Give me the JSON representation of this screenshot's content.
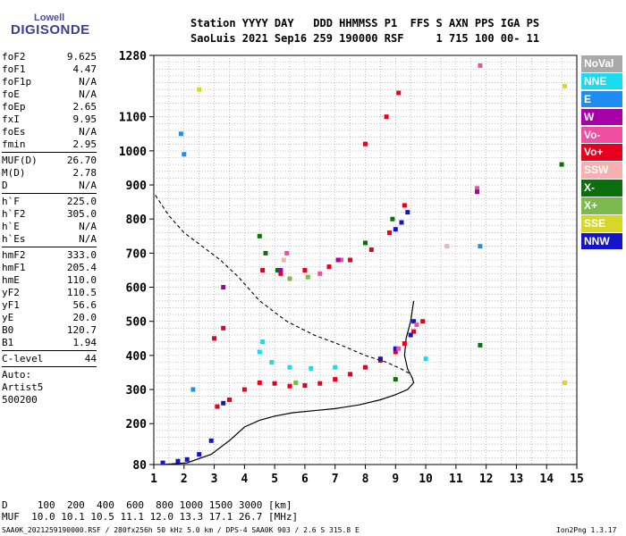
{
  "logo": {
    "top": "Lowell",
    "main": "DIGISONDE"
  },
  "header": {
    "line1": "Station YYYY DAY   DDD HHMMSS P1  FFS S AXN PPS IGA PS",
    "line2": "SaoLuis 2021 Sep16 259 190000 RSF     1 715 100 00- 11"
  },
  "params": {
    "group1": [
      {
        "name": "foF2",
        "value": "9.625"
      },
      {
        "name": "foF1",
        "value": "4.47"
      },
      {
        "name": "foF1p",
        "value": "N/A"
      },
      {
        "name": "foE",
        "value": "N/A"
      },
      {
        "name": "foEp",
        "value": "2.65"
      },
      {
        "name": "fxI",
        "value": "9.95"
      },
      {
        "name": "foEs",
        "value": "N/A"
      },
      {
        "name": "fmin",
        "value": "2.95"
      }
    ],
    "group2": [
      {
        "name": "MUF(D)",
        "value": "26.70"
      },
      {
        "name": "M(D)",
        "value": "2.78"
      },
      {
        "name": "D",
        "value": "N/A"
      }
    ],
    "group3": [
      {
        "name": "h`F",
        "value": "225.0"
      },
      {
        "name": "h`F2",
        "value": "305.0"
      },
      {
        "name": "h`E",
        "value": "N/A"
      },
      {
        "name": "h`Es",
        "value": "N/A"
      }
    ],
    "group4": [
      {
        "name": "hmF2",
        "value": "333.0"
      },
      {
        "name": "hmF1",
        "value": "205.4"
      },
      {
        "name": "hmE",
        "value": "110.0"
      },
      {
        "name": "yF2",
        "value": "110.5"
      },
      {
        "name": "yF1",
        "value": "56.6"
      },
      {
        "name": "yE",
        "value": "20.0"
      },
      {
        "name": "B0",
        "value": "120.7"
      },
      {
        "name": "B1",
        "value": "1.94"
      }
    ],
    "group5": [
      {
        "name": "C-level",
        "value": "44"
      }
    ]
  },
  "auto": {
    "line1": "Auto:",
    "line2": "Artist5",
    "line3": "500200"
  },
  "footer": {
    "distance_row": "D     100  200  400  600  800 1000 1500 3000 [km]",
    "muf_row": "MUF  10.0 10.1 10.5 11.1 12.0 13.3 17.1 26.7 [MHz]",
    "file_info": "SAA0K_2021259190000.RSF / 280fx256h 50 kHz 5.0 km / DPS-4 SAA0K 903 / 2.6 S 315.8 E",
    "version": "Ion2Png 1.3.17"
  },
  "legend": [
    {
      "label": "NoVal",
      "color": "#a9a9a9"
    },
    {
      "label": "NNE",
      "color": "#19dcf0"
    },
    {
      "label": "E",
      "color": "#1e8cf0"
    },
    {
      "label": "W",
      "color": "#a800a8"
    },
    {
      "label": "Vo-",
      "color": "#f04ea0"
    },
    {
      "label": "Vo+",
      "color": "#e6001e"
    },
    {
      "label": "SSW",
      "color": "#f7b0b0"
    },
    {
      "label": "X-",
      "color": "#0c6e0c"
    },
    {
      "label": "X+",
      "color": "#7cba50"
    },
    {
      "label": "SSE",
      "color": "#d7d728"
    },
    {
      "label": "NNW",
      "color": "#1414c8"
    }
  ],
  "chart_data": {
    "type": "scatter",
    "title": "",
    "xlabel": "",
    "ylabel": "",
    "xlim": [
      1,
      15
    ],
    "ylim": [
      80,
      1280
    ],
    "xticks": [
      1,
      2,
      3,
      4,
      5,
      6,
      7,
      8,
      9,
      10,
      11,
      12,
      13,
      14,
      15
    ],
    "yticks": [
      80,
      200,
      300,
      400,
      500,
      600,
      700,
      800,
      900,
      1000,
      1100,
      1280
    ],
    "grid": true,
    "series": [
      {
        "name": "Vo+",
        "color": "#e6001e",
        "points": [
          [
            3.1,
            250
          ],
          [
            3.5,
            270
          ],
          [
            4.0,
            300
          ],
          [
            4.5,
            320
          ],
          [
            5.0,
            318
          ],
          [
            5.5,
            310
          ],
          [
            6.0,
            312
          ],
          [
            6.5,
            318
          ],
          [
            7.0,
            330
          ],
          [
            7.5,
            345
          ],
          [
            8.0,
            365
          ],
          [
            8.5,
            385
          ],
          [
            9.0,
            410
          ],
          [
            9.3,
            435
          ],
          [
            9.6,
            470
          ],
          [
            9.9,
            500
          ],
          [
            4.6,
            650
          ],
          [
            5.2,
            640
          ],
          [
            6.0,
            650
          ],
          [
            6.8,
            660
          ],
          [
            7.5,
            680
          ],
          [
            8.2,
            710
          ],
          [
            8.8,
            760
          ],
          [
            9.3,
            840
          ],
          [
            8.0,
            1020
          ],
          [
            8.7,
            1100
          ],
          [
            9.1,
            1170
          ],
          [
            3.0,
            450
          ],
          [
            3.3,
            480
          ]
        ]
      },
      {
        "name": "NNE",
        "color": "#19dcf0",
        "points": [
          [
            4.5,
            410
          ],
          [
            4.9,
            380
          ],
          [
            5.5,
            365
          ],
          [
            6.2,
            362
          ],
          [
            7.0,
            365
          ],
          [
            4.6,
            440
          ],
          [
            10.0,
            390
          ]
        ]
      },
      {
        "name": "NNW",
        "color": "#1414c8",
        "points": [
          [
            1.3,
            85
          ],
          [
            1.8,
            90
          ],
          [
            2.1,
            95
          ],
          [
            2.5,
            110
          ],
          [
            2.9,
            150
          ],
          [
            3.3,
            260
          ],
          [
            8.5,
            390
          ],
          [
            9.0,
            420
          ],
          [
            9.5,
            460
          ],
          [
            9.6,
            500
          ],
          [
            9.4,
            820
          ],
          [
            9.2,
            790
          ],
          [
            9.0,
            770
          ]
        ]
      },
      {
        "name": "X-",
        "color": "#0c6e0c",
        "points": [
          [
            4.5,
            750
          ],
          [
            4.7,
            700
          ],
          [
            5.1,
            650
          ],
          [
            8.0,
            730
          ],
          [
            8.9,
            800
          ],
          [
            11.8,
            430
          ],
          [
            14.5,
            960
          ],
          [
            9.0,
            330
          ]
        ]
      },
      {
        "name": "X+",
        "color": "#7cba50",
        "points": [
          [
            5.5,
            625
          ],
          [
            6.1,
            630
          ],
          [
            5.7,
            320
          ]
        ]
      },
      {
        "name": "Vo-",
        "color": "#f04ea0",
        "points": [
          [
            5.4,
            700
          ],
          [
            6.5,
            640
          ],
          [
            7.2,
            680
          ],
          [
            9.1,
            420
          ],
          [
            9.7,
            490
          ],
          [
            11.8,
            1250
          ],
          [
            11.7,
            890
          ]
        ]
      },
      {
        "name": "SSW",
        "color": "#f7b0b0",
        "points": [
          [
            10.7,
            720
          ],
          [
            5.3,
            680
          ]
        ]
      },
      {
        "name": "SSE",
        "color": "#d7d728",
        "points": [
          [
            2.5,
            1180
          ],
          [
            14.6,
            1190
          ],
          [
            14.6,
            320
          ]
        ]
      },
      {
        "name": "E",
        "color": "#1e8cf0",
        "points": [
          [
            1.9,
            1050
          ],
          [
            2.0,
            990
          ],
          [
            2.3,
            300
          ],
          [
            11.8,
            720
          ]
        ]
      },
      {
        "name": "W",
        "color": "#a800a8",
        "points": [
          [
            11.7,
            880
          ],
          [
            3.3,
            600
          ],
          [
            5.2,
            650
          ],
          [
            7.1,
            680
          ]
        ]
      }
    ],
    "profile_curve": [
      [
        1.3,
        80
      ],
      [
        2.1,
        85
      ],
      [
        2.9,
        110
      ],
      [
        3.5,
        150
      ],
      [
        4.0,
        190
      ],
      [
        4.5,
        210
      ],
      [
        5.0,
        222
      ],
      [
        5.6,
        232
      ],
      [
        6.3,
        238
      ],
      [
        7.0,
        244
      ],
      [
        7.8,
        255
      ],
      [
        8.5,
        270
      ],
      [
        9.0,
        285
      ],
      [
        9.4,
        300
      ],
      [
        9.6,
        320
      ],
      [
        9.55,
        335
      ],
      [
        9.4,
        360
      ],
      [
        9.3,
        400
      ],
      [
        9.35,
        450
      ],
      [
        9.5,
        500
      ],
      [
        9.6,
        560
      ]
    ],
    "dashed_curve": [
      [
        1.05,
        870
      ],
      [
        1.5,
        810
      ],
      [
        2.0,
        760
      ],
      [
        2.6,
        720
      ],
      [
        3.2,
        680
      ],
      [
        3.8,
        630
      ],
      [
        4.5,
        560
      ],
      [
        5.4,
        500
      ],
      [
        6.3,
        460
      ],
      [
        7.2,
        430
      ],
      [
        8.0,
        400
      ],
      [
        8.7,
        380
      ],
      [
        9.2,
        360
      ],
      [
        9.5,
        345
      ]
    ]
  }
}
